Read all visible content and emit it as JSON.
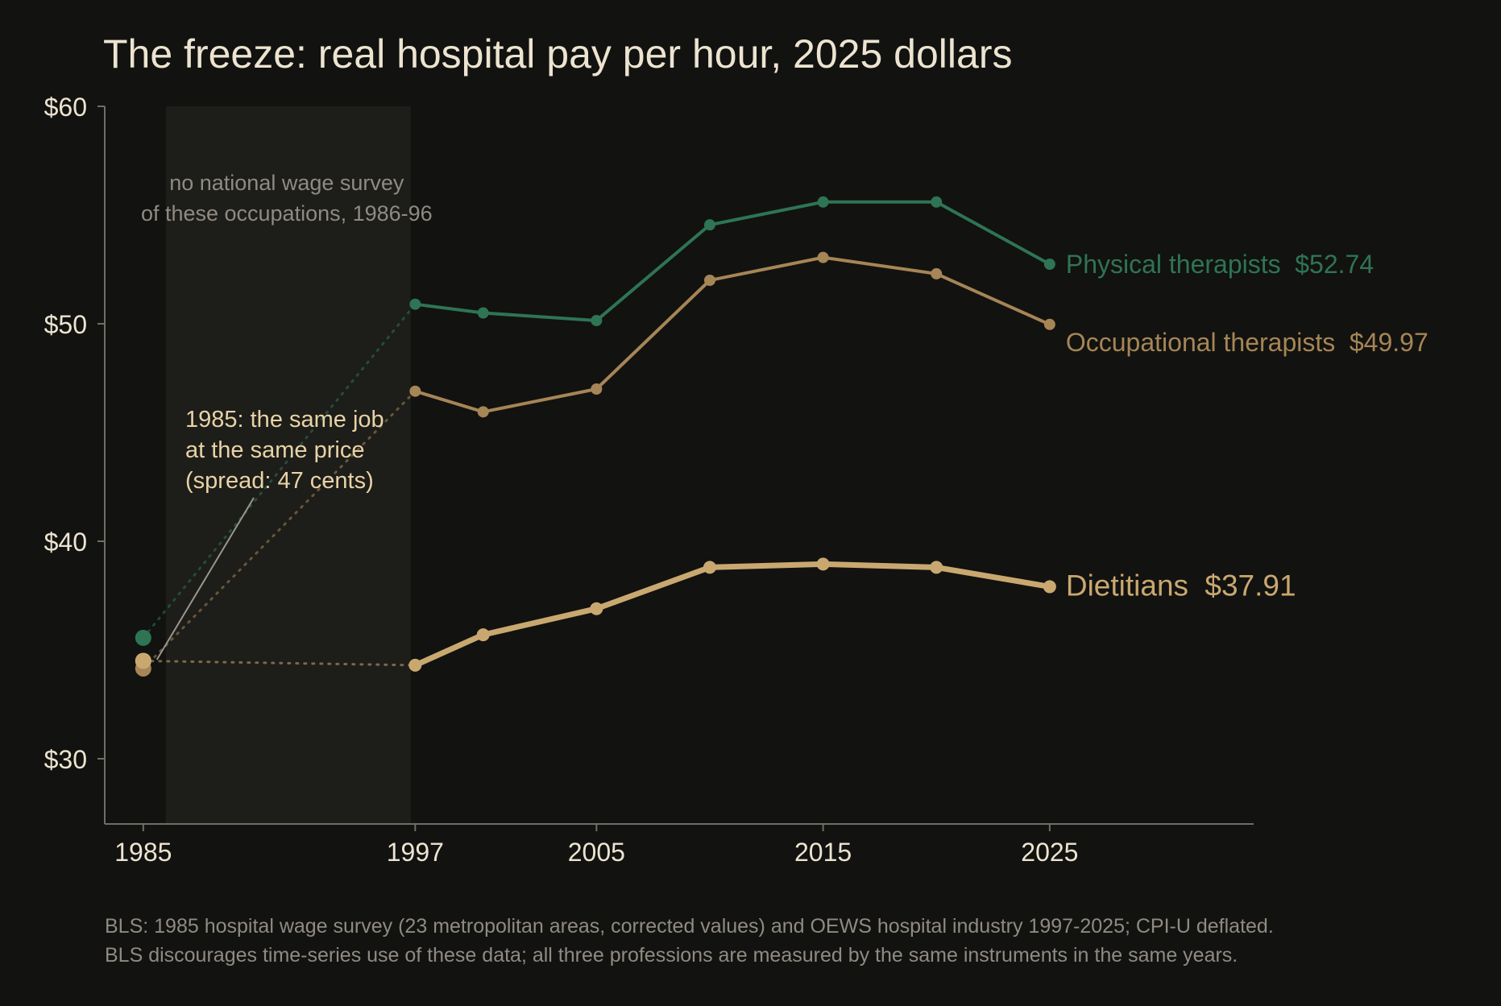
{
  "chart_data": {
    "type": "line",
    "title": "The freeze: real hospital pay per hour, 2025 dollars",
    "xlabel": "",
    "ylabel": "",
    "xlim": [
      1983.3,
      2034
    ],
    "ylim": [
      27,
      60
    ],
    "x_ticks": [
      1985,
      1997,
      2005,
      2015,
      2025
    ],
    "x_tick_labels": [
      "1985",
      "1997",
      "2005",
      "2015",
      "2025"
    ],
    "y_ticks": [
      30,
      40,
      50,
      60
    ],
    "y_tick_labels": [
      "$30",
      "$40",
      "$50",
      "$60"
    ],
    "grid": false,
    "legend": "direct labels at line ends",
    "gap": {
      "from": 1986,
      "to": 1996.8,
      "label_lines": [
        "no national wage survey",
        "of these occupations, 1986-96"
      ]
    },
    "annotation": {
      "lines": [
        "1985: the same job",
        "at the same price",
        "(spread: 47 cents)"
      ],
      "points_to_x": 1985.6,
      "points_to_y": 35.0
    },
    "series": [
      {
        "name": "Physical therapists",
        "end_label": "$52.74",
        "color": "#2e7455",
        "width": 4,
        "point_1985": 35.56,
        "x": [
          1997,
          2000,
          2005,
          2010,
          2015,
          2020,
          2025
        ],
        "values": [
          50.9,
          50.5,
          50.15,
          54.55,
          55.6,
          55.6,
          52.74
        ]
      },
      {
        "name": "Occupational therapists",
        "end_label": "$49.97",
        "color": "#a68556",
        "width": 4,
        "point_1985": 34.15,
        "x": [
          1997,
          2000,
          2005,
          2010,
          2015,
          2020,
          2025
        ],
        "values": [
          46.9,
          45.95,
          47.0,
          52.0,
          53.05,
          52.3,
          49.97
        ]
      },
      {
        "name": "Dietitians",
        "end_label": "$37.91",
        "color": "#c9a870",
        "width": 7,
        "point_1985": 34.5,
        "x": [
          1997,
          2000,
          2005,
          2010,
          2015,
          2020,
          2025
        ],
        "values": [
          34.3,
          35.7,
          36.9,
          38.8,
          38.95,
          38.8,
          37.91
        ]
      }
    ],
    "colors": {
      "background": "#121210",
      "gap_band": "#1d1d1a",
      "axis": "#6f6d67",
      "tick_text": "#ece4d0",
      "gap_text": "#8f8b82",
      "annotation_text": "#e8d3a6"
    }
  },
  "footnote": [
    "BLS: 1985 hospital wage survey (23 metropolitan areas, corrected values) and OEWS hospital industry 1997-2025; CPI-U deflated.",
    "BLS discourages time-series use of these data; all three professions are measured by the same instruments in the same years."
  ]
}
